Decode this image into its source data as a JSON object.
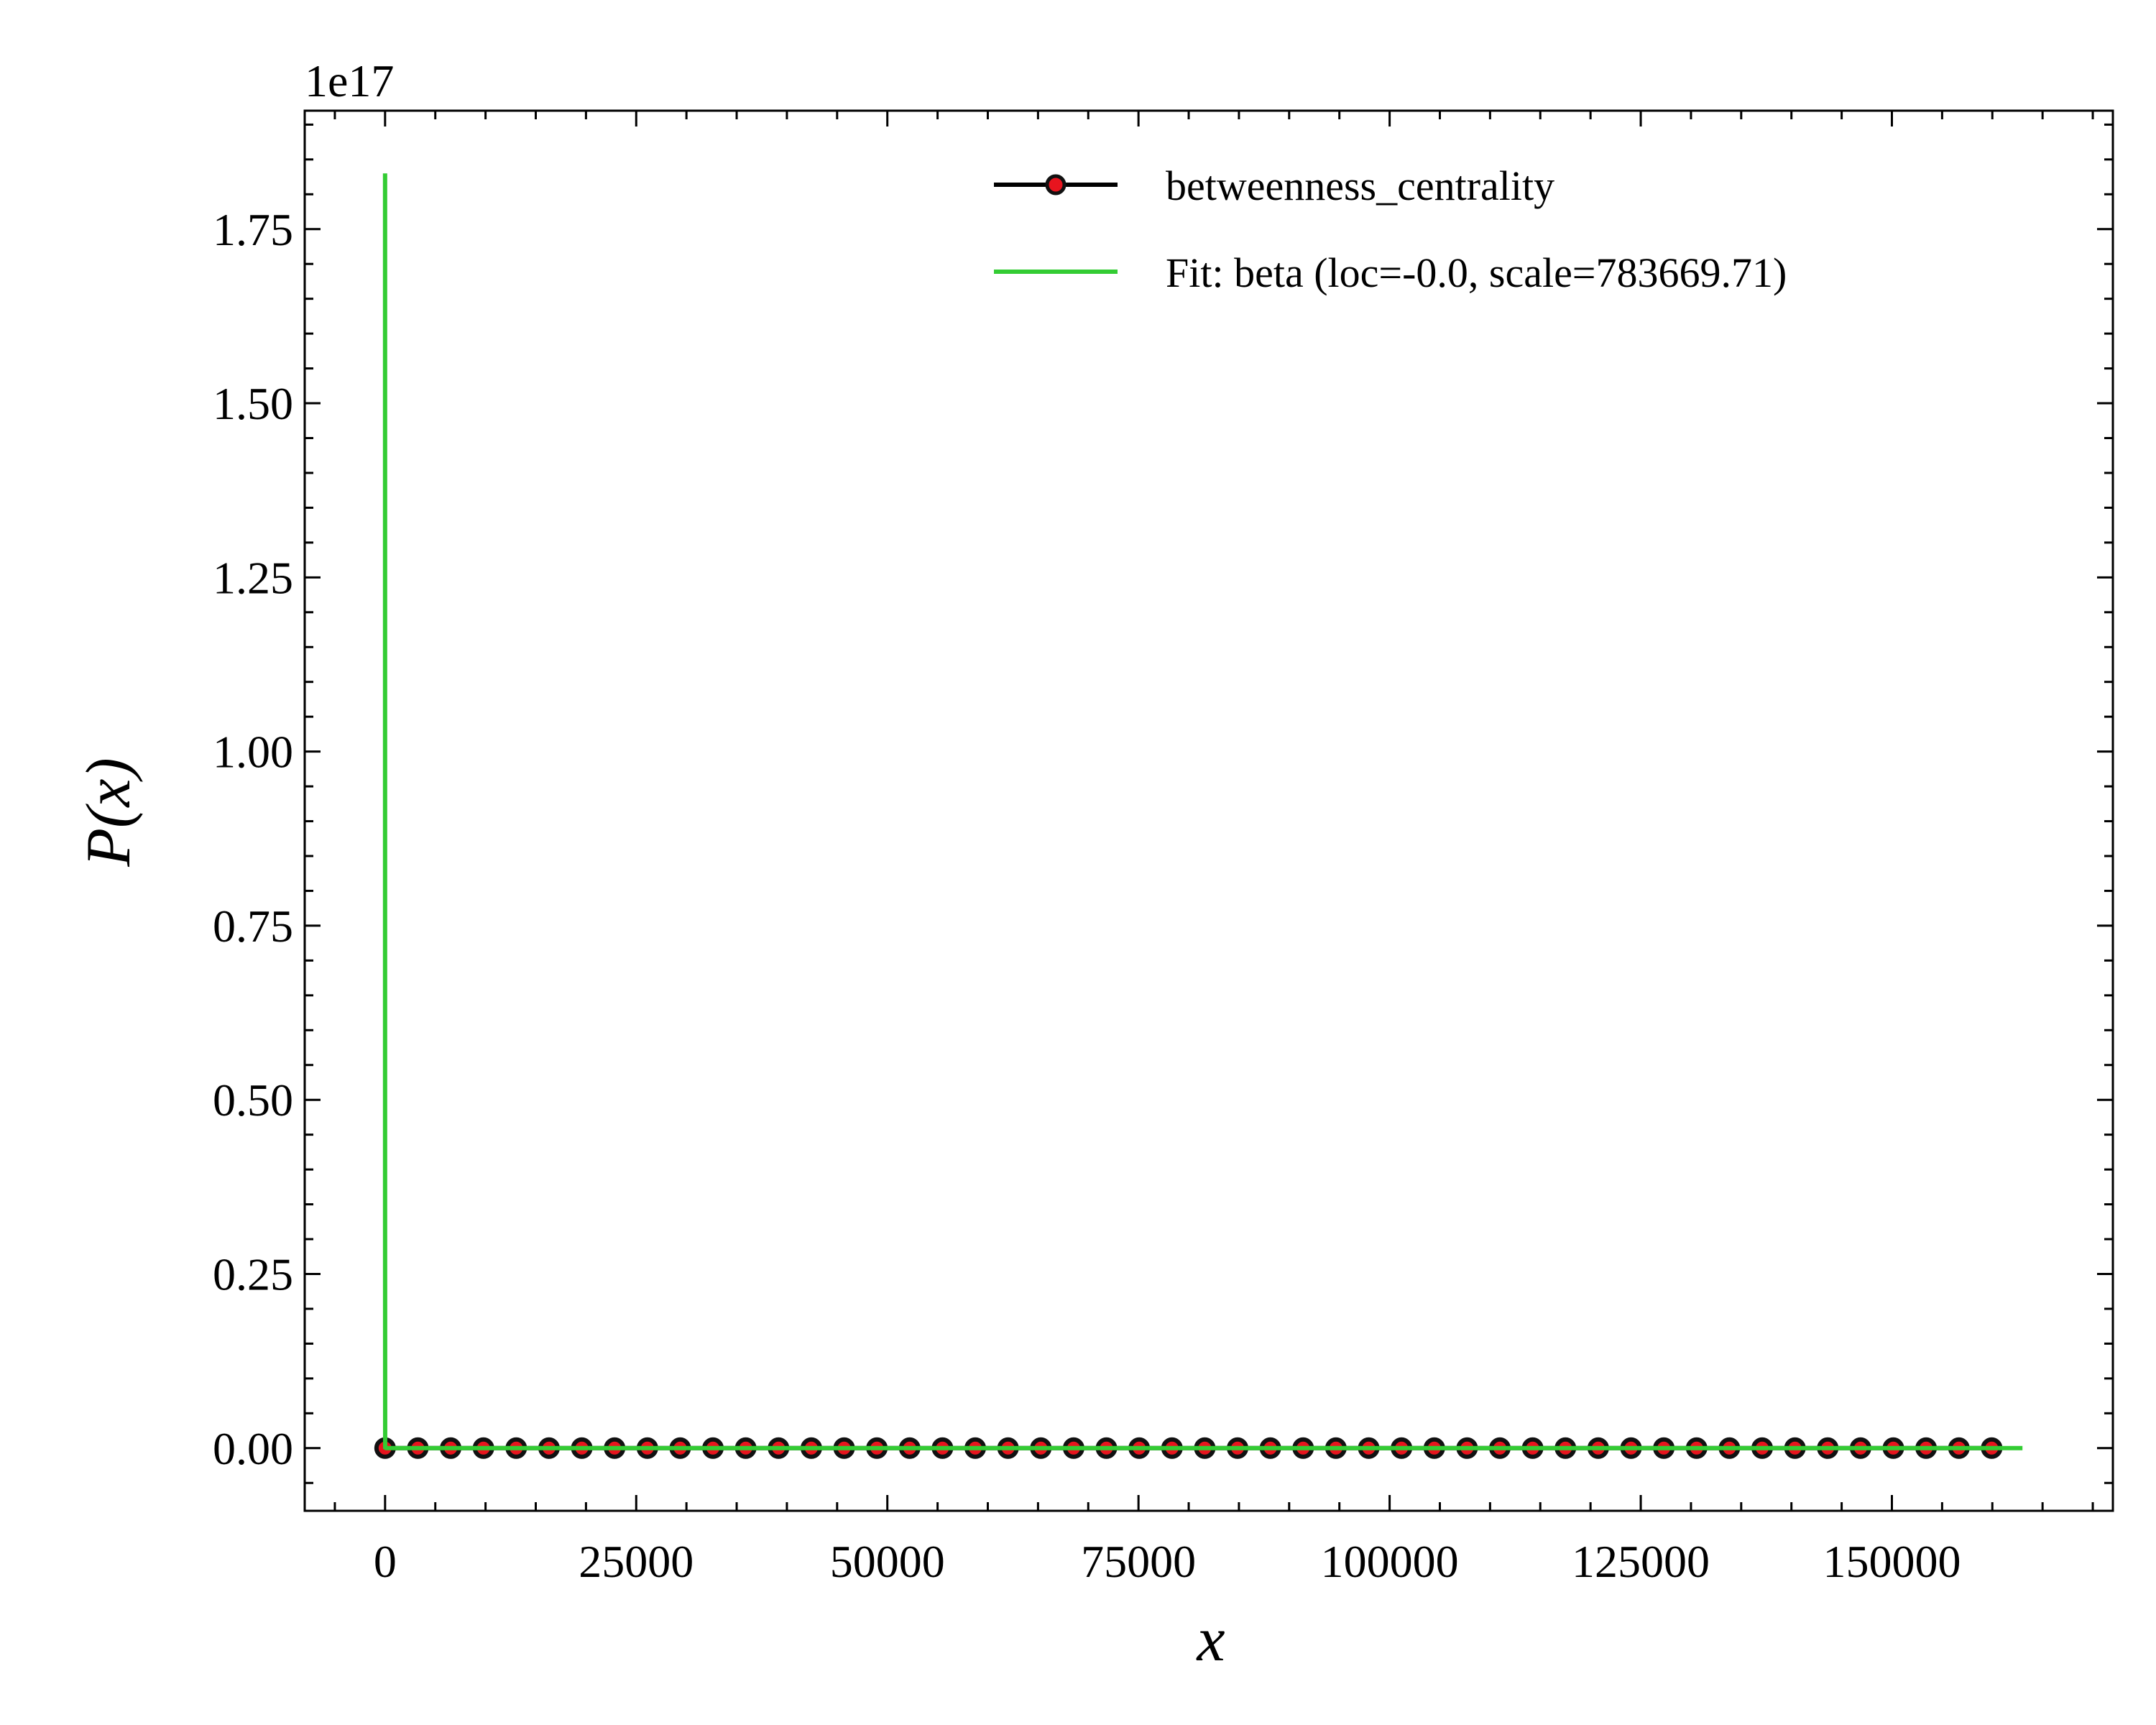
{
  "chart_data": {
    "type": "line",
    "title": "",
    "xlabel": "x",
    "ylabel": "P(x)",
    "y_offset_text": "1e17",
    "xlim": [
      -8000,
      172000
    ],
    "ylim": [
      -0.09,
      1.92
    ],
    "y_scale_factor": 1e+17,
    "x_ticks": [
      0,
      25000,
      50000,
      75000,
      100000,
      125000,
      150000
    ],
    "x_tick_labels": [
      "0",
      "25000",
      "50000",
      "75000",
      "100000",
      "125000",
      "150000"
    ],
    "y_ticks": [
      0.0,
      0.25,
      0.5,
      0.75,
      1.0,
      1.25,
      1.5,
      1.75
    ],
    "y_tick_labels": [
      "0.00",
      "0.25",
      "0.50",
      "0.75",
      "1.00",
      "1.25",
      "1.50",
      "1.75"
    ],
    "grid": false,
    "legend_position": "top-right",
    "series": [
      {
        "name": "betweenness_centrality",
        "kind": "line+markers",
        "line_color": "#000000",
        "marker_fill": "#e8141e",
        "marker_edge": "#111111",
        "x": [
          0,
          3264,
          6528,
          9792,
          13056,
          16320,
          19584,
          22848,
          26112,
          29376,
          32640,
          35904,
          39168,
          42432,
          45696,
          48960,
          52224,
          55488,
          58752,
          62016,
          65280,
          68544,
          71808,
          75072,
          78336,
          81600,
          84864,
          88128,
          91392,
          94656,
          97920,
          101184,
          104448,
          107712,
          110976,
          114240,
          117504,
          120768,
          124032,
          127296,
          130560,
          133824,
          137088,
          140352,
          143616,
          146880,
          150144,
          153408,
          156672,
          159936
        ],
        "y": [
          0,
          0,
          0,
          0,
          0,
          0,
          0,
          0,
          0,
          0,
          0,
          0,
          0,
          0,
          0,
          0,
          0,
          0,
          0,
          0,
          0,
          0,
          0,
          0,
          0,
          0,
          0,
          0,
          0,
          0,
          0,
          0,
          0,
          0,
          0,
          0,
          0,
          0,
          0,
          0,
          0,
          0,
          0,
          0,
          0,
          0,
          0,
          0,
          0,
          0
        ]
      },
      {
        "name": "Fit: beta (loc=-0.0, scale=783669.71)",
        "kind": "line",
        "line_color": "#33cc33",
        "x": [
          0,
          0.5,
          10,
          100,
          1000,
          5000,
          20000,
          50000,
          100000,
          163000
        ],
        "y": [
          1.83,
          0.35,
          0.0008,
          1e-05,
          0,
          0,
          0,
          0,
          0,
          0
        ]
      }
    ]
  }
}
